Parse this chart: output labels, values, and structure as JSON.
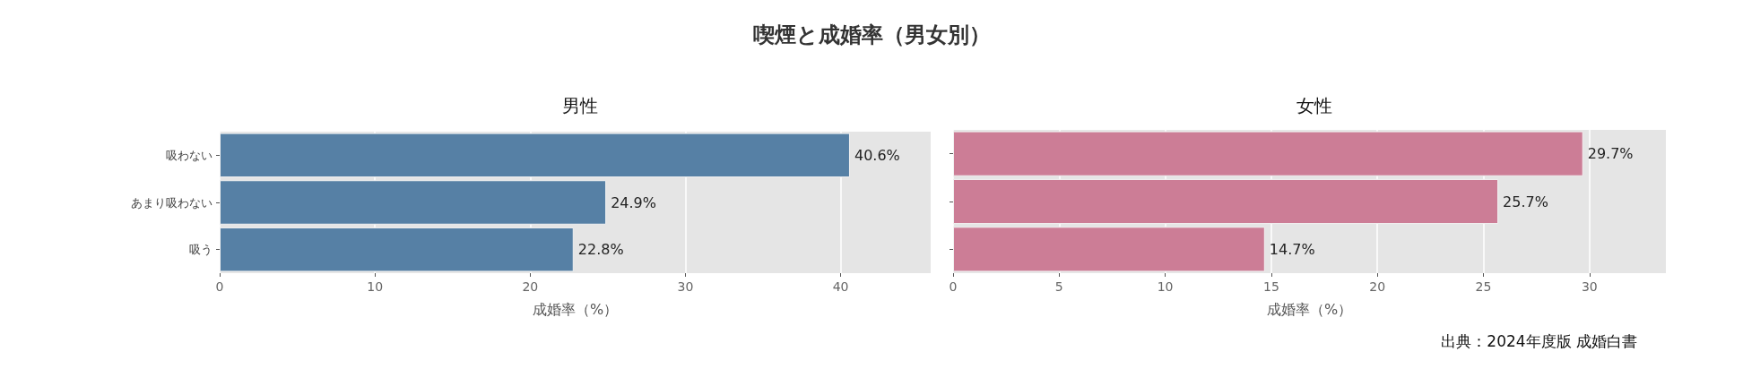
{
  "chart_data": [
    {
      "type": "other",
      "title": "喫煙と成婚率（男女別）",
      "annotations": [
        "出典：2024年度版 成婚白書"
      ]
    },
    {
      "type": "bar",
      "orientation": "horizontal",
      "title": "男性",
      "xlabel": "成婚率（%）",
      "categories": [
        "吸わない",
        "あまり吸わない",
        "吸う"
      ],
      "values": [
        40.6,
        24.9,
        22.8
      ],
      "value_labels": [
        "40.6%",
        "24.9%",
        "22.8%"
      ],
      "color": "#5680a5",
      "xlim": [
        0,
        45.8
      ],
      "xticks": [
        0,
        10,
        20,
        30,
        40
      ],
      "grid": "x"
    },
    {
      "type": "bar",
      "orientation": "horizontal",
      "title": "女性",
      "xlabel": "成婚率（%）",
      "categories": [
        null,
        null,
        null
      ],
      "values": [
        29.7,
        25.7,
        14.7
      ],
      "value_labels": [
        "29.7%",
        "25.7%",
        "14.7%"
      ],
      "color": "#cc7d96",
      "xlim": [
        0,
        33.6
      ],
      "xticks": [
        0,
        5,
        10,
        15,
        20,
        25,
        30
      ],
      "grid": "x",
      "tick_labels": "x"
    }
  ]
}
